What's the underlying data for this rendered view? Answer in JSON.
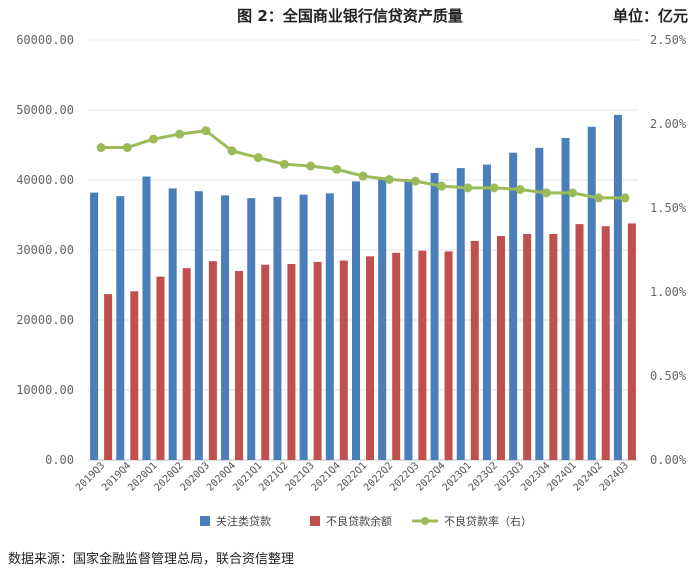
{
  "header": {
    "title": "图 2：全国商业银行信贷资产质量",
    "unit": "单位：亿元"
  },
  "source": "数据来源：国家金融监督管理总局，联合资信整理",
  "chart_data": {
    "type": "bar",
    "categories": [
      "2019Q3",
      "2019Q4",
      "2020Q1",
      "2020Q2",
      "2020Q3",
      "2020Q4",
      "2021Q1",
      "2021Q2",
      "2021Q3",
      "2021Q4",
      "2022Q1",
      "2022Q2",
      "2022Q3",
      "2022Q4",
      "2023Q1",
      "2023Q2",
      "2023Q3",
      "2023Q4",
      "2024Q1",
      "2024Q2",
      "2024Q3"
    ],
    "series": [
      {
        "name": "关注类贷款",
        "type": "bar",
        "axis": "left",
        "color": "#4a7ebb",
        "values": [
          38200,
          37700,
          40500,
          38800,
          38400,
          37800,
          37400,
          37600,
          37900,
          38100,
          39800,
          40200,
          40100,
          41000,
          41700,
          42200,
          43900,
          44600,
          46000,
          47600,
          49300
        ]
      },
      {
        "name": "不良贷款余额",
        "type": "bar",
        "axis": "left",
        "color": "#c0504d",
        "values": [
          23700,
          24100,
          26200,
          27400,
          28400,
          27000,
          27900,
          28000,
          28300,
          28500,
          29100,
          29600,
          29900,
          29800,
          31300,
          32000,
          32300,
          32300,
          33700,
          33400,
          33800
        ]
      },
      {
        "name": "不良贷款率（右）",
        "type": "line",
        "axis": "right",
        "color": "#9bbb59",
        "values": [
          1.86,
          1.86,
          1.91,
          1.94,
          1.96,
          1.84,
          1.8,
          1.76,
          1.75,
          1.73,
          1.69,
          1.67,
          1.66,
          1.63,
          1.62,
          1.62,
          1.61,
          1.59,
          1.59,
          1.56,
          1.56
        ]
      }
    ],
    "y_left": {
      "min": 0,
      "max": 60000,
      "step": 10000,
      "tick_labels": [
        "0.00",
        "10000.00",
        "20000.00",
        "30000.00",
        "40000.00",
        "50000.00",
        "60000.00"
      ]
    },
    "y_right": {
      "min": 0,
      "max": 2.5,
      "step": 0.5,
      "tick_labels": [
        "0.00%",
        "0.50%",
        "1.00%",
        "1.50%",
        "2.00%",
        "2.50%"
      ]
    },
    "grid": true,
    "legend": "bottom"
  }
}
